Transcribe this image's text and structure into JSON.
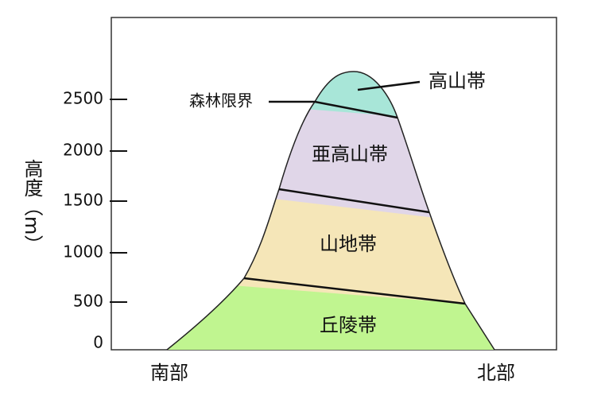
{
  "y_axis": {
    "label": "高度（m）",
    "ticks": [
      0,
      500,
      1000,
      1500,
      2000,
      2500
    ]
  },
  "x_axis": {
    "left": "南部",
    "right": "北部"
  },
  "zones": [
    "丘陵帯",
    "山地帯",
    "亜高山帯",
    "高山帯"
  ],
  "annotation": "森林限界"
}
